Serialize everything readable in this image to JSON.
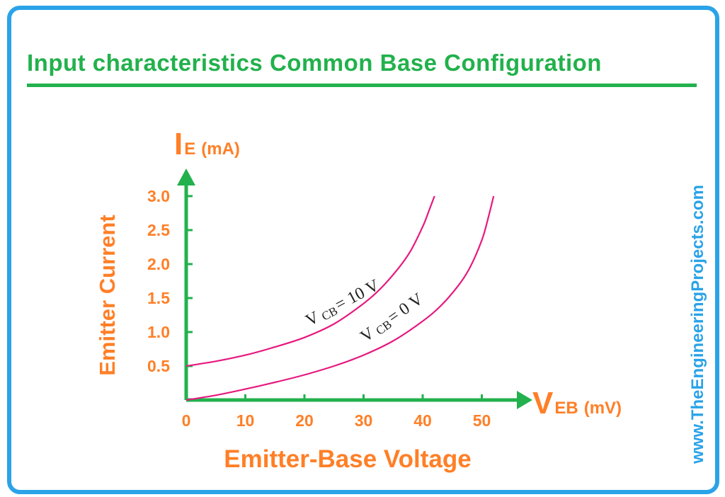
{
  "title": "Input characteristics Common Base Configuration",
  "watermark": "www.TheEngineeringProjects.com",
  "colors": {
    "frame": "#2aa3e8",
    "accent": "#22b14c",
    "label": "#ff7f27",
    "curve": "#e6197f"
  },
  "chart_data": {
    "type": "line",
    "title": "Input characteristics Common Base Configuration",
    "xlabel": "Emitter-Base Voltage",
    "ylabel": "Emitter Current",
    "x_axis_symbol": {
      "main": "V",
      "sub": "EB",
      "unit": "(mV)"
    },
    "y_axis_symbol": {
      "main": "I",
      "sub": "E",
      "unit": "(mA)"
    },
    "xlim": [
      0,
      55
    ],
    "ylim": [
      0,
      3.4
    ],
    "x_ticks": [
      0,
      10,
      20,
      30,
      40,
      50
    ],
    "x_tick_labels": [
      "0",
      "10",
      "20",
      "30",
      "40",
      "50"
    ],
    "y_ticks": [
      0.5,
      1.0,
      1.5,
      2.0,
      2.5,
      3.0
    ],
    "y_tick_labels": [
      "0.5",
      "1.0",
      "1.5",
      "2.0",
      "2.5",
      "3.0"
    ],
    "grid": false,
    "series": [
      {
        "name": "V CB = 10 V",
        "label": {
          "main": "V",
          "sub": "CB",
          "value": "= 10 V"
        },
        "x": [
          0,
          5,
          10,
          15,
          20,
          25,
          30,
          33,
          36,
          38,
          40,
          41,
          42
        ],
        "y": [
          0.5,
          0.57,
          0.66,
          0.78,
          0.92,
          1.12,
          1.42,
          1.65,
          1.95,
          2.2,
          2.55,
          2.77,
          3.0
        ]
      },
      {
        "name": "V CB = 0 V",
        "label": {
          "main": "V",
          "sub": "CB",
          "value": "= 0 V"
        },
        "x": [
          0,
          5,
          10,
          15,
          20,
          25,
          30,
          35,
          40,
          43,
          46,
          48,
          50,
          51,
          52
        ],
        "y": [
          0.0,
          0.07,
          0.16,
          0.26,
          0.37,
          0.5,
          0.66,
          0.87,
          1.16,
          1.38,
          1.68,
          1.95,
          2.35,
          2.65,
          3.0
        ]
      }
    ]
  }
}
